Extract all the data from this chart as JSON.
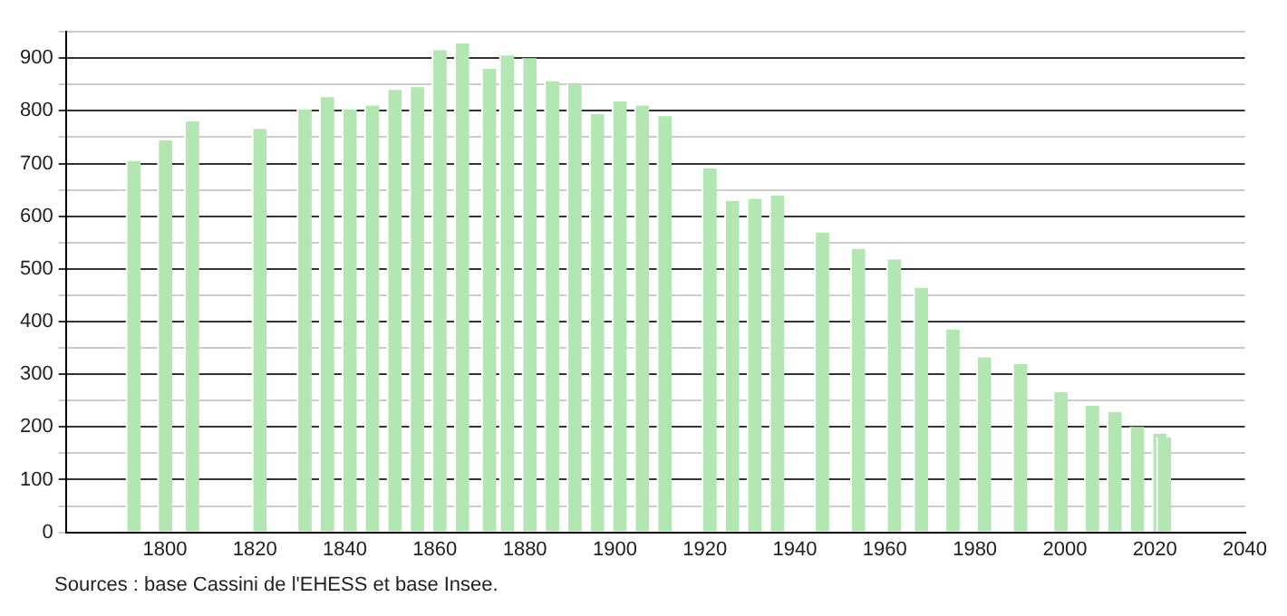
{
  "chart_data": {
    "type": "bar",
    "x": [
      1793,
      1800,
      1806,
      1821,
      1831,
      1836,
      1841,
      1846,
      1851,
      1856,
      1861,
      1866,
      1872,
      1876,
      1881,
      1886,
      1891,
      1896,
      1901,
      1906,
      1911,
      1921,
      1926,
      1931,
      1936,
      1946,
      1954,
      1962,
      1968,
      1975,
      1982,
      1990,
      1999,
      2006,
      2011,
      2016,
      2021,
      2022
    ],
    "values": [
      705,
      744,
      780,
      766,
      803,
      826,
      803,
      810,
      840,
      845,
      915,
      928,
      880,
      905,
      900,
      856,
      851,
      794,
      818,
      810,
      790,
      691,
      629,
      633,
      639,
      569,
      538,
      518,
      464,
      385,
      332,
      319,
      266,
      240,
      228,
      200,
      187,
      180
    ],
    "color": "#b3e6b3",
    "xlim": [
      1778,
      2040
    ],
    "xticks": [
      1800,
      1820,
      1840,
      1860,
      1880,
      1900,
      1920,
      1940,
      1960,
      1980,
      2000,
      2020,
      2040
    ],
    "ylim": [
      0,
      950
    ],
    "yticks": [
      0,
      {
        "value": 50,
        "label": null
      },
      100,
      {
        "value": 150,
        "label": null
      },
      200,
      {
        "value": 250,
        "label": null
      },
      300,
      {
        "value": 350,
        "label": null
      },
      400,
      {
        "value": 450,
        "label": null
      },
      500,
      {
        "value": 550,
        "label": null
      },
      600,
      {
        "value": 650,
        "label": null
      },
      700,
      {
        "value": 750,
        "label": null
      },
      800,
      {
        "value": 850,
        "label": null
      },
      900,
      {
        "value": 950,
        "label": null
      }
    ],
    "grid": "y",
    "annotations": [
      "Sources : base Cassini de l'EHESS et base Insee."
    ]
  }
}
